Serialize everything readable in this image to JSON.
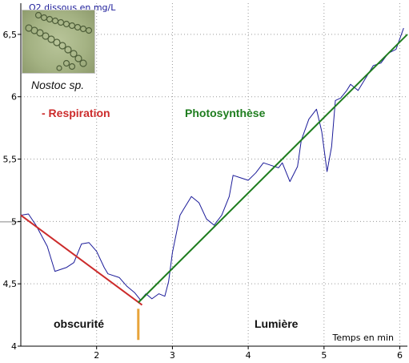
{
  "chart_data": {
    "type": "line",
    "ylabel": "O2 dissous en mg/L",
    "xlabel": "Temps en min",
    "xlim": [
      1,
      6.1
    ],
    "ylim": [
      4,
      6.75
    ],
    "x_ticks": [
      2,
      3,
      4,
      5,
      6
    ],
    "y_ticks": [
      4,
      4.5,
      5,
      5.5,
      6,
      6.5
    ],
    "y_tick_labels": [
      "4",
      "4,5",
      "5",
      "5,5",
      "6",
      "6,5"
    ],
    "grid": true,
    "series": [
      {
        "color": "#1b1b99",
        "x": [
          1.0,
          1.1,
          1.2,
          1.35,
          1.45,
          1.6,
          1.7,
          1.8,
          1.9,
          2.0,
          2.1,
          2.15,
          2.3,
          2.4,
          2.5,
          2.58,
          2.65,
          2.73,
          2.82,
          2.9,
          2.95,
          3.0,
          3.1,
          3.15,
          3.25,
          3.35,
          3.45,
          3.55,
          3.65,
          3.75,
          3.8,
          3.9,
          4.0,
          4.1,
          4.2,
          4.3,
          4.4,
          4.45,
          4.55,
          4.65,
          4.7,
          4.8,
          4.9,
          4.97,
          5.04,
          5.1,
          5.15,
          5.22,
          5.3,
          5.35,
          5.45,
          5.55,
          5.65,
          5.75,
          5.85,
          5.95,
          6.05
        ],
        "values": [
          5.05,
          5.06,
          4.97,
          4.8,
          4.6,
          4.63,
          4.67,
          4.82,
          4.83,
          4.76,
          4.63,
          4.58,
          4.55,
          4.48,
          4.43,
          4.37,
          4.42,
          4.38,
          4.42,
          4.4,
          4.52,
          4.75,
          5.05,
          5.1,
          5.2,
          5.15,
          5.02,
          4.97,
          5.05,
          5.2,
          5.37,
          5.35,
          5.33,
          5.39,
          5.47,
          5.45,
          5.43,
          5.47,
          5.32,
          5.44,
          5.65,
          5.82,
          5.9,
          5.72,
          5.4,
          5.6,
          5.97,
          5.99,
          6.05,
          6.1,
          6.05,
          6.15,
          6.25,
          6.27,
          6.35,
          6.38,
          6.55
        ]
      },
      {
        "color": "#cc2b2b",
        "x": [
          1.0,
          2.6
        ],
        "values": [
          5.05,
          4.33
        ]
      },
      {
        "color": "#1e7d1e",
        "x": [
          2.55,
          6.1
        ],
        "values": [
          4.35,
          6.5
        ]
      }
    ],
    "marker": {
      "x": 2.55,
      "color": "#e8a43a"
    },
    "annotations": {
      "species": "Nostoc sp.",
      "respiration": "- Respiration",
      "photosynthese": "Photosynthèse",
      "obscurite": "obscurité",
      "lumiere": "Lumière"
    }
  }
}
